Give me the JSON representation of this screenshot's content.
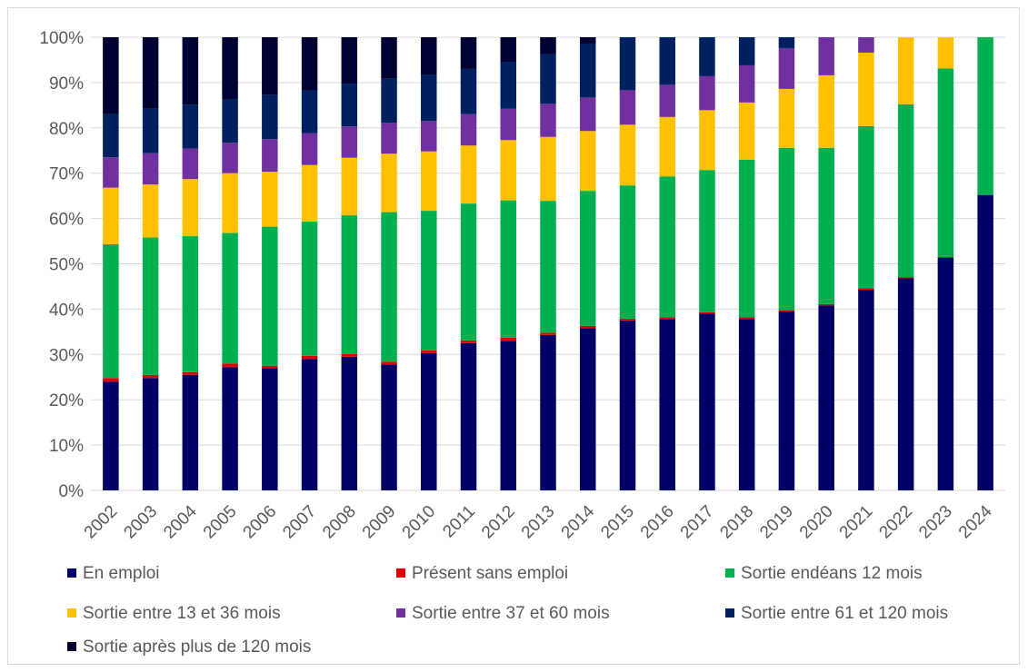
{
  "chart_data": {
    "type": "bar",
    "stacked": true,
    "percent_stacked": true,
    "title": "",
    "xlabel": "",
    "ylabel": "",
    "ylim": [
      0,
      100
    ],
    "y_tick_labels": [
      "0%",
      "10%",
      "20%",
      "30%",
      "40%",
      "50%",
      "60%",
      "70%",
      "80%",
      "90%",
      "100%"
    ],
    "grid": true,
    "legend_position": "bottom",
    "categories": [
      "2002",
      "2003",
      "2004",
      "2005",
      "2006",
      "2007",
      "2008",
      "2009",
      "2010",
      "2011",
      "2012",
      "2013",
      "2014",
      "2015",
      "2016",
      "2017",
      "2018",
      "2019",
      "2020",
      "2021",
      "2022",
      "2023",
      "2024"
    ],
    "series": [
      {
        "name": "En emploi",
        "color": "#000066",
        "values": [
          24.0,
          24.8,
          25.5,
          27.2,
          27.0,
          29.0,
          29.5,
          27.8,
          30.3,
          32.5,
          33.0,
          34.3,
          35.8,
          37.5,
          37.8,
          39.0,
          37.8,
          39.5,
          40.8,
          44.3,
          46.8,
          51.3,
          65.2
        ]
      },
      {
        "name": "Présent sans emploi",
        "color": "#e00000",
        "values": [
          0.8,
          0.7,
          0.6,
          0.8,
          0.5,
          0.7,
          0.6,
          0.6,
          0.6,
          0.6,
          0.7,
          0.5,
          0.5,
          0.4,
          0.4,
          0.3,
          0.4,
          0.3,
          0.3,
          0.3,
          0.2,
          0.2,
          0.0
        ]
      },
      {
        "name": "Sortie endéans 12 mois",
        "color": "#00b050",
        "values": [
          29.5,
          30.3,
          30.0,
          28.8,
          30.7,
          29.6,
          30.6,
          33.0,
          30.8,
          30.2,
          30.3,
          29.1,
          29.8,
          29.4,
          31.1,
          31.4,
          34.8,
          35.8,
          34.5,
          35.8,
          38.2,
          41.6,
          34.8
        ]
      },
      {
        "name": "Sortie entre 13 et 36 mois",
        "color": "#ffc000",
        "values": [
          12.5,
          11.7,
          12.6,
          13.2,
          12.1,
          12.5,
          12.7,
          12.9,
          13.1,
          12.8,
          13.3,
          14.1,
          13.2,
          13.4,
          13.1,
          13.2,
          12.6,
          13.0,
          16.0,
          16.2,
          14.8,
          6.9,
          0.0
        ]
      },
      {
        "name": "Sortie entre 37 et 60 mois",
        "color": "#7030a0",
        "values": [
          6.7,
          6.9,
          6.7,
          6.7,
          7.2,
          7.0,
          6.9,
          6.8,
          6.7,
          6.9,
          6.9,
          7.3,
          7.4,
          7.6,
          7.1,
          7.5,
          8.2,
          9.0,
          8.4,
          3.4,
          0.0,
          0.0,
          0.0
        ]
      },
      {
        "name": "Sortie entre 61 et 120 mois",
        "color": "#002060",
        "values": [
          9.5,
          9.8,
          9.7,
          9.5,
          9.8,
          9.4,
          9.4,
          9.8,
          10.2,
          10.0,
          10.3,
          11.0,
          11.9,
          11.7,
          10.5,
          8.6,
          6.2,
          2.4,
          0.0,
          0.0,
          0.0,
          0.0,
          0.0
        ]
      },
      {
        "name": "Sortie après plus de 120 mois",
        "color": "#000033",
        "values": [
          17.0,
          15.8,
          14.9,
          13.8,
          12.7,
          11.8,
          10.3,
          9.1,
          8.3,
          7.0,
          5.5,
          3.7,
          1.4,
          0.0,
          0.0,
          0.0,
          0.0,
          0.0,
          0.0,
          0.0,
          0.0,
          0.0,
          0.0
        ]
      }
    ]
  }
}
